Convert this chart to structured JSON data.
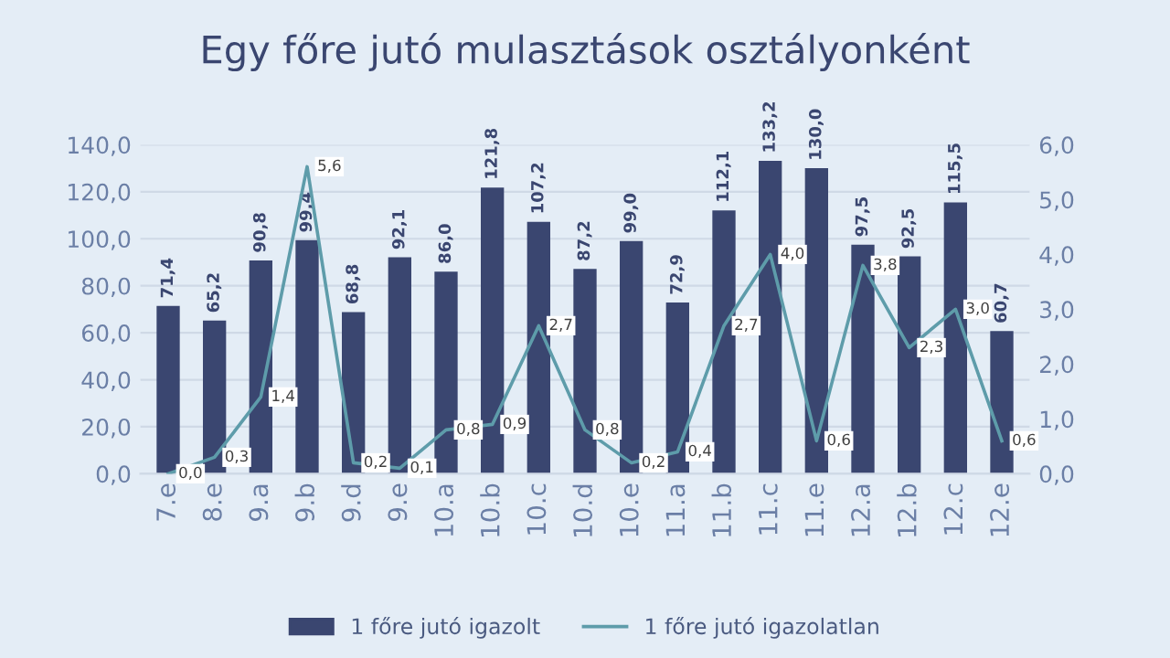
{
  "chart_data": {
    "type": "bar",
    "title": "Egy főre jutó mulasztások osztályonként",
    "categories": [
      "7.e",
      "8.e",
      "9.a",
      "9.b",
      "9.d",
      "9.e",
      "10.a",
      "10.b",
      "10.c",
      "10.d",
      "10.e",
      "11.a",
      "11.b",
      "11.c",
      "11.e",
      "12.a",
      "12.b",
      "12.c",
      "12.e"
    ],
    "series": [
      {
        "name": "1 főre jutó igazolt",
        "color": "#3a4670",
        "values": [
          71.4,
          65.2,
          90.8,
          99.4,
          68.8,
          92.1,
          86.0,
          121.8,
          107.2,
          87.2,
          99.0,
          72.9,
          112.1,
          133.2,
          130.0,
          97.5,
          92.5,
          115.5,
          60.7
        ],
        "value_labels": [
          "71,4",
          "65,2",
          "90,8",
          "99,4",
          "68,8",
          "92,1",
          "86,0",
          "121,8",
          "107,2",
          "87,2",
          "99,0",
          "72,9",
          "112,1",
          "133,2",
          "130,0",
          "97,5",
          "92,5",
          "115,5",
          "60,7"
        ]
      },
      {
        "name": "1 főre jutó igazolatlan",
        "type": "line",
        "axis": "y2",
        "color": "#5e9caa",
        "values": [
          0.0,
          0.3,
          1.4,
          5.6,
          0.2,
          0.1,
          0.8,
          0.9,
          2.7,
          0.8,
          0.2,
          0.4,
          2.7,
          4.0,
          0.6,
          3.8,
          2.3,
          3.0,
          0.6
        ],
        "value_labels": [
          "0,0",
          "0,3",
          "1,4",
          "5,6",
          "0,2",
          "0,1",
          "0,8",
          "0,9",
          "2,7",
          "0,8",
          "0,2",
          "0,4",
          "2,7",
          "4,0",
          "0,6",
          "3,8",
          "2,3",
          "3,0",
          "0,6"
        ]
      }
    ],
    "ylim": [
      0,
      140
    ],
    "yticks": [
      {
        "value": 0,
        "label": "0,0"
      },
      {
        "value": 20,
        "label": "20,0"
      },
      {
        "value": 40,
        "label": "40,0"
      },
      {
        "value": 60,
        "label": "60,0"
      },
      {
        "value": 80,
        "label": "80,0"
      },
      {
        "value": 100,
        "label": "100,0"
      },
      {
        "value": 120,
        "label": "120,0"
      },
      {
        "value": 140,
        "label": "140,0"
      }
    ],
    "y2lim": [
      0,
      6
    ],
    "y2ticks": [
      {
        "value": 0,
        "label": "0,0"
      },
      {
        "value": 1,
        "label": "1,0"
      },
      {
        "value": 2,
        "label": "2,0"
      },
      {
        "value": 3,
        "label": "3,0"
      },
      {
        "value": 4,
        "label": "4,0"
      },
      {
        "value": 5,
        "label": "5,0"
      },
      {
        "value": 6,
        "label": "6,0"
      }
    ],
    "grid": "y",
    "legend": "bottom",
    "marker": "none",
    "line_style": "solid"
  }
}
